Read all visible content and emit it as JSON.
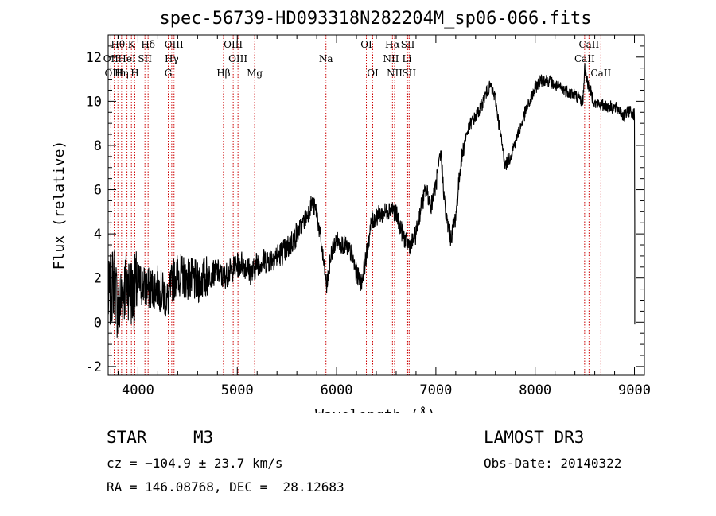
{
  "chart_data": {
    "type": "line",
    "title": "spec-56739-HD093318N282204M_sp06-066.fits",
    "xlabel": "Wavelength (Å)",
    "ylabel": "Flux (relative)",
    "xlim": [
      3700,
      9100
    ],
    "ylim": [
      -2.4,
      13.0
    ],
    "xticks": [
      4000,
      5000,
      6000,
      7000,
      8000,
      9000
    ],
    "yticks": [
      -2,
      0,
      2,
      4,
      6,
      8,
      10,
      12
    ],
    "line_color": "#000000",
    "marker_color": "#cc0000",
    "spectrum_anchors": [
      [
        3700,
        1.0
      ],
      [
        3760,
        2.0
      ],
      [
        3800,
        0.5
      ],
      [
        3850,
        1.5
      ],
      [
        3900,
        1.8
      ],
      [
        3950,
        1.2
      ],
      [
        4000,
        1.8
      ],
      [
        4100,
        1.5
      ],
      [
        4200,
        1.6
      ],
      [
        4300,
        1.0
      ],
      [
        4350,
        1.9
      ],
      [
        4400,
        2.2
      ],
      [
        4500,
        2.0
      ],
      [
        4600,
        1.8
      ],
      [
        4700,
        2.1
      ],
      [
        4800,
        2.3
      ],
      [
        4860,
        2.0
      ],
      [
        4950,
        2.4
      ],
      [
        5050,
        2.7
      ],
      [
        5150,
        2.2
      ],
      [
        5200,
        2.7
      ],
      [
        5300,
        2.8
      ],
      [
        5400,
        3.0
      ],
      [
        5500,
        3.3
      ],
      [
        5600,
        4.0
      ],
      [
        5700,
        4.8
      ],
      [
        5750,
        5.4
      ],
      [
        5800,
        5.0
      ],
      [
        5850,
        3.4
      ],
      [
        5900,
        1.6
      ],
      [
        5950,
        3.2
      ],
      [
        6000,
        3.7
      ],
      [
        6100,
        3.4
      ],
      [
        6150,
        3.1
      ],
      [
        6200,
        2.2
      ],
      [
        6250,
        1.8
      ],
      [
        6300,
        3.0
      ],
      [
        6350,
        4.5
      ],
      [
        6400,
        4.8
      ],
      [
        6450,
        4.9
      ],
      [
        6500,
        5.0
      ],
      [
        6550,
        5.2
      ],
      [
        6600,
        4.9
      ],
      [
        6650,
        4.2
      ],
      [
        6700,
        3.6
      ],
      [
        6750,
        3.5
      ],
      [
        6800,
        4.0
      ],
      [
        6850,
        5.2
      ],
      [
        6900,
        6.0
      ],
      [
        6950,
        5.3
      ],
      [
        7000,
        6.2
      ],
      [
        7050,
        7.6
      ],
      [
        7100,
        4.8
      ],
      [
        7150,
        3.8
      ],
      [
        7200,
        4.8
      ],
      [
        7250,
        7.2
      ],
      [
        7300,
        8.4
      ],
      [
        7350,
        9.0
      ],
      [
        7400,
        9.3
      ],
      [
        7450,
        9.7
      ],
      [
        7500,
        10.3
      ],
      [
        7550,
        10.7
      ],
      [
        7600,
        10.1
      ],
      [
        7650,
        8.5
      ],
      [
        7700,
        7.1
      ],
      [
        7750,
        7.5
      ],
      [
        7800,
        8.2
      ],
      [
        7850,
        8.8
      ],
      [
        7900,
        9.5
      ],
      [
        7950,
        10.0
      ],
      [
        8000,
        10.6
      ],
      [
        8050,
        10.9
      ],
      [
        8100,
        11.0
      ],
      [
        8150,
        10.9
      ],
      [
        8200,
        10.7
      ],
      [
        8300,
        10.5
      ],
      [
        8400,
        10.3
      ],
      [
        8480,
        10.0
      ],
      [
        8500,
        11.5
      ],
      [
        8530,
        10.8
      ],
      [
        8600,
        9.9
      ],
      [
        8700,
        9.8
      ],
      [
        8800,
        9.7
      ],
      [
        8850,
        9.6
      ],
      [
        8900,
        9.3
      ],
      [
        8950,
        9.6
      ],
      [
        9000,
        9.4
      ],
      [
        9003,
        -0.1
      ]
    ],
    "line_markers": [
      {
        "label": "Hθ",
        "wavelength": 3798,
        "row": 0
      },
      {
        "label": "OII",
        "wavelength": 3727,
        "row": 1
      },
      {
        "label": "OIII",
        "wavelength": 3760,
        "row": 2
      },
      {
        "label": "K",
        "wavelength": 3934,
        "row": 0
      },
      {
        "label": "H",
        "wavelength": 3968,
        "row": 2
      },
      {
        "label": "HeI",
        "wavelength": 3889,
        "row": 1
      },
      {
        "label": "Hη",
        "wavelength": 3835,
        "row": 2
      },
      {
        "label": "SII",
        "wavelength": 4070,
        "row": 1
      },
      {
        "label": "Hδ",
        "wavelength": 4102,
        "row": 0
      },
      {
        "label": "OIII",
        "wavelength": 4363,
        "row": 0
      },
      {
        "label": "Hγ",
        "wavelength": 4340,
        "row": 1
      },
      {
        "label": "G",
        "wavelength": 4305,
        "row": 2
      },
      {
        "label": "OIII",
        "wavelength": 4959,
        "row": 0
      },
      {
        "label": "OIII",
        "wavelength": 5007,
        "row": 1
      },
      {
        "label": "Hβ",
        "wavelength": 4861,
        "row": 2
      },
      {
        "label": "Mg",
        "wavelength": 5175,
        "row": 2
      },
      {
        "label": "Na",
        "wavelength": 5893,
        "row": 1
      },
      {
        "label": "OI",
        "wavelength": 6300,
        "row": 0
      },
      {
        "label": "OI",
        "wavelength": 6364,
        "row": 2
      },
      {
        "label": "Hα",
        "wavelength": 6563,
        "row": 0
      },
      {
        "label": "NII",
        "wavelength": 6548,
        "row": 1
      },
      {
        "label": "NII",
        "wavelength": 6584,
        "row": 2
      },
      {
        "label": "SII",
        "wavelength": 6717,
        "row": 0
      },
      {
        "label": "Li",
        "wavelength": 6708,
        "row": 1
      },
      {
        "label": "SII",
        "wavelength": 6731,
        "row": 2
      },
      {
        "label": "CaII",
        "wavelength": 8542,
        "row": 0
      },
      {
        "label": "CaII",
        "wavelength": 8498,
        "row": 1
      },
      {
        "label": "CaII",
        "wavelength": 8662,
        "row": 2
      }
    ]
  },
  "info": {
    "class": "STAR",
    "subclass": "M3",
    "redshift": "cz = −104.9 ± 23.7 km/s",
    "coords": "RA = 146.08768, DEC =  28.12683",
    "survey": "LAMOST DR3",
    "obs_date": "Obs-Date: 20140322"
  }
}
